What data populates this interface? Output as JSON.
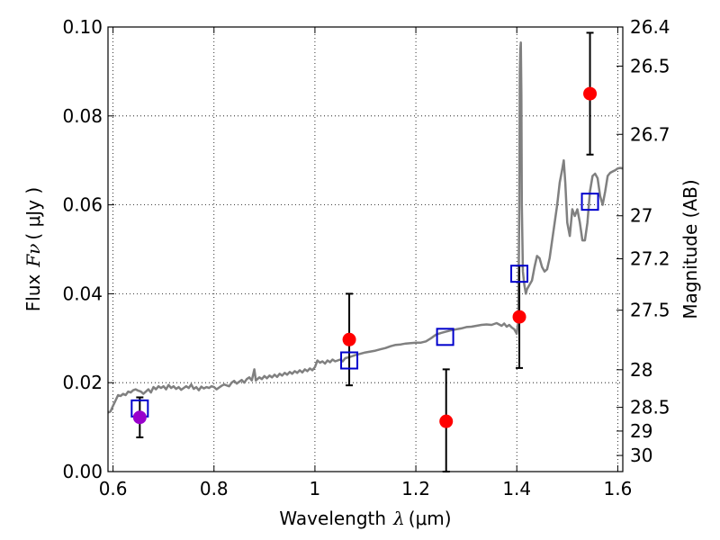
{
  "chart_data": {
    "type": "scatter",
    "title": "",
    "xlabel": {
      "prefix": "Wavelength",
      "symbol": "λ",
      "units": "(μm)"
    },
    "ylabel": {
      "prefix": "Flux",
      "symbol": "Fν",
      "units": "( μJy )"
    },
    "y2label": "Magnitude (AB)",
    "xlim": [
      0.59,
      1.61
    ],
    "ylim": [
      0.0,
      0.1
    ],
    "grid": true,
    "x_ticks": [
      {
        "value": 0.6,
        "label": "0.6"
      },
      {
        "value": 0.8,
        "label": "0.8"
      },
      {
        "value": 1.0,
        "label": "1"
      },
      {
        "value": 1.2,
        "label": "1.2"
      },
      {
        "value": 1.4,
        "label": "1.4"
      },
      {
        "value": 1.6,
        "label": "1.6"
      }
    ],
    "y_ticks": [
      {
        "value": 0.0,
        "label": "0.00"
      },
      {
        "value": 0.02,
        "label": "0.02"
      },
      {
        "value": 0.04,
        "label": "0.04"
      },
      {
        "value": 0.06,
        "label": "0.06"
      },
      {
        "value": 0.08,
        "label": "0.08"
      },
      {
        "value": 0.1,
        "label": "0.10"
      }
    ],
    "y2_ticks": [
      {
        "mag": 26.4,
        "label": "26.4"
      },
      {
        "mag": 26.5,
        "label": "26.5"
      },
      {
        "mag": 26.7,
        "label": "26.7"
      },
      {
        "mag": 27.0,
        "label": "27"
      },
      {
        "mag": 27.2,
        "label": "27.2"
      },
      {
        "mag": 27.5,
        "label": "27.5"
      },
      {
        "mag": 28.0,
        "label": "28"
      },
      {
        "mag": 28.5,
        "label": "28.5"
      },
      {
        "mag": 29.0,
        "label": "29"
      },
      {
        "mag": 30.0,
        "label": "30"
      }
    ],
    "model_spectrum": {
      "color": "#808080",
      "points": [
        [
          0.59,
          0.0133
        ],
        [
          0.595,
          0.0135
        ],
        [
          0.6,
          0.0148
        ],
        [
          0.605,
          0.016
        ],
        [
          0.61,
          0.0172
        ],
        [
          0.615,
          0.017
        ],
        [
          0.62,
          0.0175
        ],
        [
          0.625,
          0.0172
        ],
        [
          0.63,
          0.018
        ],
        [
          0.635,
          0.0178
        ],
        [
          0.64,
          0.0183
        ],
        [
          0.645,
          0.0185
        ],
        [
          0.65,
          0.0182
        ],
        [
          0.655,
          0.018
        ],
        [
          0.66,
          0.0175
        ],
        [
          0.665,
          0.018
        ],
        [
          0.67,
          0.0185
        ],
        [
          0.675,
          0.0178
        ],
        [
          0.68,
          0.019
        ],
        [
          0.685,
          0.0185
        ],
        [
          0.69,
          0.0192
        ],
        [
          0.695,
          0.0188
        ],
        [
          0.7,
          0.0192
        ],
        [
          0.705,
          0.0185
        ],
        [
          0.71,
          0.0195
        ],
        [
          0.715,
          0.0188
        ],
        [
          0.72,
          0.0192
        ],
        [
          0.725,
          0.0186
        ],
        [
          0.73,
          0.019
        ],
        [
          0.735,
          0.0184
        ],
        [
          0.74,
          0.0188
        ],
        [
          0.745,
          0.0192
        ],
        [
          0.75,
          0.0188
        ],
        [
          0.755,
          0.0196
        ],
        [
          0.76,
          0.0186
        ],
        [
          0.765,
          0.019
        ],
        [
          0.77,
          0.0183
        ],
        [
          0.775,
          0.0191
        ],
        [
          0.78,
          0.0187
        ],
        [
          0.785,
          0.019
        ],
        [
          0.79,
          0.0188
        ],
        [
          0.795,
          0.0192
        ],
        [
          0.8,
          0.019
        ],
        [
          0.805,
          0.0185
        ],
        [
          0.81,
          0.0189
        ],
        [
          0.815,
          0.0193
        ],
        [
          0.82,
          0.0196
        ],
        [
          0.825,
          0.0194
        ],
        [
          0.83,
          0.0192
        ],
        [
          0.835,
          0.02
        ],
        [
          0.84,
          0.0204
        ],
        [
          0.845,
          0.0198
        ],
        [
          0.85,
          0.0202
        ],
        [
          0.855,
          0.0206
        ],
        [
          0.86,
          0.02
        ],
        [
          0.865,
          0.0208
        ],
        [
          0.87,
          0.0212
        ],
        [
          0.875,
          0.0205
        ],
        [
          0.88,
          0.023
        ],
        [
          0.883,
          0.0205
        ],
        [
          0.89,
          0.0212
        ],
        [
          0.895,
          0.0208
        ],
        [
          0.9,
          0.0215
        ],
        [
          0.905,
          0.021
        ],
        [
          0.91,
          0.0216
        ],
        [
          0.915,
          0.0212
        ],
        [
          0.92,
          0.0218
        ],
        [
          0.925,
          0.0213
        ],
        [
          0.93,
          0.022
        ],
        [
          0.935,
          0.0216
        ],
        [
          0.94,
          0.0222
        ],
        [
          0.945,
          0.0218
        ],
        [
          0.95,
          0.0224
        ],
        [
          0.955,
          0.022
        ],
        [
          0.96,
          0.0226
        ],
        [
          0.965,
          0.0222
        ],
        [
          0.97,
          0.0228
        ],
        [
          0.975,
          0.0223
        ],
        [
          0.98,
          0.023
        ],
        [
          0.985,
          0.0226
        ],
        [
          0.99,
          0.0232
        ],
        [
          0.995,
          0.0228
        ],
        [
          1.0,
          0.0235
        ],
        [
          1.005,
          0.025
        ],
        [
          1.01,
          0.0245
        ],
        [
          1.015,
          0.0248
        ],
        [
          1.02,
          0.0243
        ],
        [
          1.025,
          0.025
        ],
        [
          1.03,
          0.0246
        ],
        [
          1.035,
          0.0252
        ],
        [
          1.04,
          0.0248
        ],
        [
          1.045,
          0.025
        ],
        [
          1.05,
          0.0252
        ],
        [
          1.055,
          0.0248
        ],
        [
          1.06,
          0.0255
        ],
        [
          1.07,
          0.0258
        ],
        [
          1.08,
          0.0262
        ],
        [
          1.09,
          0.0265
        ],
        [
          1.1,
          0.0268
        ],
        [
          1.11,
          0.027
        ],
        [
          1.12,
          0.0272
        ],
        [
          1.13,
          0.0275
        ],
        [
          1.14,
          0.0278
        ],
        [
          1.15,
          0.0282
        ],
        [
          1.16,
          0.0285
        ],
        [
          1.17,
          0.0286
        ],
        [
          1.18,
          0.0288
        ],
        [
          1.19,
          0.0289
        ],
        [
          1.2,
          0.029
        ],
        [
          1.21,
          0.029
        ],
        [
          1.22,
          0.0293
        ],
        [
          1.23,
          0.03
        ],
        [
          1.24,
          0.0308
        ],
        [
          1.25,
          0.0312
        ],
        [
          1.26,
          0.0315
        ],
        [
          1.27,
          0.0318
        ],
        [
          1.28,
          0.032
        ],
        [
          1.29,
          0.0322
        ],
        [
          1.3,
          0.0325
        ],
        [
          1.31,
          0.0326
        ],
        [
          1.32,
          0.0328
        ],
        [
          1.33,
          0.033
        ],
        [
          1.34,
          0.0331
        ],
        [
          1.35,
          0.033
        ],
        [
          1.36,
          0.0334
        ],
        [
          1.37,
          0.0328
        ],
        [
          1.375,
          0.0333
        ],
        [
          1.38,
          0.0326
        ],
        [
          1.385,
          0.033
        ],
        [
          1.39,
          0.0324
        ],
        [
          1.395,
          0.032
        ],
        [
          1.4,
          0.031
        ],
        [
          1.403,
          0.034
        ],
        [
          1.405,
          0.06
        ],
        [
          1.406,
          0.09
        ],
        [
          1.407,
          0.095
        ],
        [
          1.408,
          0.0965
        ],
        [
          1.409,
          0.085
        ],
        [
          1.41,
          0.06
        ],
        [
          1.412,
          0.045
        ],
        [
          1.415,
          0.042
        ],
        [
          1.418,
          0.04
        ],
        [
          1.42,
          0.041
        ],
        [
          1.425,
          0.042
        ],
        [
          1.43,
          0.043
        ],
        [
          1.435,
          0.046
        ],
        [
          1.44,
          0.0485
        ],
        [
          1.445,
          0.048
        ],
        [
          1.45,
          0.046
        ],
        [
          1.455,
          0.045
        ],
        [
          1.46,
          0.0455
        ],
        [
          1.465,
          0.048
        ],
        [
          1.47,
          0.052
        ],
        [
          1.475,
          0.056
        ],
        [
          1.48,
          0.06
        ],
        [
          1.485,
          0.065
        ],
        [
          1.49,
          0.068
        ],
        [
          1.493,
          0.07
        ],
        [
          1.496,
          0.065
        ],
        [
          1.5,
          0.056
        ],
        [
          1.505,
          0.053
        ],
        [
          1.51,
          0.059
        ],
        [
          1.515,
          0.0575
        ],
        [
          1.52,
          0.059
        ],
        [
          1.525,
          0.056
        ],
        [
          1.53,
          0.052
        ],
        [
          1.535,
          0.052
        ],
        [
          1.54,
          0.056
        ],
        [
          1.545,
          0.063
        ],
        [
          1.55,
          0.0665
        ],
        [
          1.555,
          0.067
        ],
        [
          1.56,
          0.066
        ],
        [
          1.565,
          0.062
        ],
        [
          1.57,
          0.06
        ],
        [
          1.575,
          0.063
        ],
        [
          1.58,
          0.0665
        ],
        [
          1.585,
          0.0672
        ],
        [
          1.59,
          0.0675
        ],
        [
          1.595,
          0.0678
        ],
        [
          1.6,
          0.0682
        ],
        [
          1.605,
          0.0683
        ],
        [
          1.61,
          0.0682
        ]
      ]
    },
    "observed": {
      "color": "#ff0000",
      "points": [
        {
          "x": 1.068,
          "y": 0.0297,
          "err_low": 0.0103,
          "err_high": 0.0103
        },
        {
          "x": 1.26,
          "y": 0.0113,
          "err_low": 0.0113,
          "err_high": 0.0117
        },
        {
          "x": 1.405,
          "y": 0.0348,
          "err_low": 0.0115,
          "err_high": 0.0115
        },
        {
          "x": 1.545,
          "y": 0.085,
          "err_low": 0.0137,
          "err_high": 0.0137
        }
      ]
    },
    "observed_special": {
      "color": "#9900cc",
      "points": [
        {
          "x": 0.653,
          "y": 0.0122,
          "err_low": 0.0045,
          "err_high": 0.0045
        }
      ]
    },
    "model_photometry": {
      "color": "#0000cc",
      "points": [
        {
          "x": 0.653,
          "y": 0.0142
        },
        {
          "x": 1.068,
          "y": 0.025
        },
        {
          "x": 1.258,
          "y": 0.0303
        },
        {
          "x": 1.405,
          "y": 0.0445
        },
        {
          "x": 1.545,
          "y": 0.0607
        }
      ]
    }
  }
}
